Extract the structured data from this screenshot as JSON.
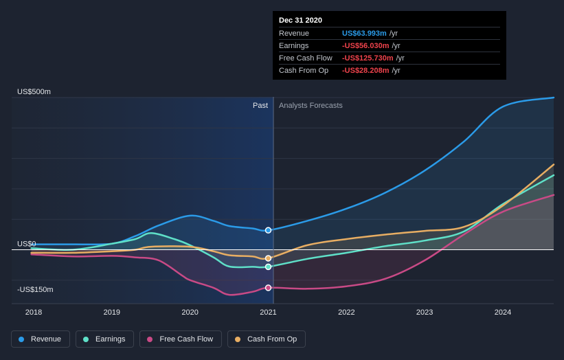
{
  "tooltip": {
    "date": "Dec 31 2020",
    "rows": [
      {
        "label": "Revenue",
        "value": "US$63.993m",
        "unit": "/yr",
        "color": "#2b9be8"
      },
      {
        "label": "Earnings",
        "value": "-US$56.030m",
        "unit": "/yr",
        "color": "#f0434c"
      },
      {
        "label": "Free Cash Flow",
        "value": "-US$125.730m",
        "unit": "/yr",
        "color": "#f0434c"
      },
      {
        "label": "Cash From Op",
        "value": "-US$28.208m",
        "unit": "/yr",
        "color": "#f0434c"
      }
    ]
  },
  "legend": [
    {
      "label": "Revenue",
      "color": "#2b9be8"
    },
    {
      "label": "Earnings",
      "color": "#5fe0c8"
    },
    {
      "label": "Free Cash Flow",
      "color": "#c94a86"
    },
    {
      "label": "Cash From Op",
      "color": "#e8ae63"
    }
  ],
  "chart_data": {
    "type": "line",
    "title": "",
    "xlabel": "",
    "ylabel": "",
    "ylim": [
      -150,
      500
    ],
    "y_tick_labels": [
      {
        "value": 500,
        "label": "US$500m"
      },
      {
        "value": 0,
        "label": "US$0"
      },
      {
        "value": -150,
        "label": "-US$150m"
      }
    ],
    "x_ticks": [
      2018,
      2019,
      2020,
      2021,
      2022,
      2023,
      2024
    ],
    "x_tick_labels": [
      "2018",
      "2019",
      "2020",
      "2021",
      "2022",
      "2023",
      "2024"
    ],
    "xlim": [
      2018,
      2024.65
    ],
    "past_label": "Past",
    "forecast_label": "Analysts Forecasts",
    "present_x": 2021.0,
    "series": [
      {
        "name": "Revenue",
        "color": "#2b9be8",
        "points": [
          [
            2017.97,
            18
          ],
          [
            2018.5,
            18
          ],
          [
            2019.0,
            20
          ],
          [
            2019.3,
            45
          ],
          [
            2019.6,
            80
          ],
          [
            2020.0,
            112
          ],
          [
            2020.3,
            95
          ],
          [
            2020.5,
            78
          ],
          [
            2020.8,
            70
          ],
          [
            2021.0,
            64
          ],
          [
            2021.5,
            95
          ],
          [
            2022.0,
            135
          ],
          [
            2022.5,
            188
          ],
          [
            2023.0,
            260
          ],
          [
            2023.5,
            355
          ],
          [
            2024.0,
            470
          ],
          [
            2024.65,
            500
          ]
        ]
      },
      {
        "name": "Earnings",
        "color": "#5fe0c8",
        "points": [
          [
            2017.97,
            5
          ],
          [
            2018.5,
            0
          ],
          [
            2019.0,
            20
          ],
          [
            2019.3,
            35
          ],
          [
            2019.5,
            55
          ],
          [
            2019.8,
            35
          ],
          [
            2020.0,
            15
          ],
          [
            2020.3,
            -25
          ],
          [
            2020.5,
            -55
          ],
          [
            2020.8,
            -56
          ],
          [
            2021.0,
            -56
          ],
          [
            2021.5,
            -30
          ],
          [
            2022.0,
            -10
          ],
          [
            2022.5,
            12
          ],
          [
            2023.0,
            30
          ],
          [
            2023.5,
            60
          ],
          [
            2024.0,
            150
          ],
          [
            2024.65,
            245
          ]
        ]
      },
      {
        "name": "Free Cash Flow",
        "color": "#c94a86",
        "points": [
          [
            2017.97,
            -15
          ],
          [
            2018.5,
            -22
          ],
          [
            2019.0,
            -20
          ],
          [
            2019.3,
            -25
          ],
          [
            2019.6,
            -35
          ],
          [
            2019.9,
            -85
          ],
          [
            2020.0,
            -100
          ],
          [
            2020.3,
            -125
          ],
          [
            2020.5,
            -148
          ],
          [
            2020.8,
            -138
          ],
          [
            2021.0,
            -125
          ],
          [
            2021.5,
            -128
          ],
          [
            2022.0,
            -120
          ],
          [
            2022.5,
            -95
          ],
          [
            2023.0,
            -35
          ],
          [
            2023.5,
            50
          ],
          [
            2024.0,
            125
          ],
          [
            2024.65,
            180
          ]
        ]
      },
      {
        "name": "Cash From Op",
        "color": "#e8ae63",
        "points": [
          [
            2017.97,
            -10
          ],
          [
            2018.5,
            -10
          ],
          [
            2019.0,
            -5
          ],
          [
            2019.3,
            0
          ],
          [
            2019.5,
            10
          ],
          [
            2020.0,
            10
          ],
          [
            2020.3,
            -5
          ],
          [
            2020.5,
            -18
          ],
          [
            2020.8,
            -22
          ],
          [
            2021.0,
            -28
          ],
          [
            2021.5,
            15
          ],
          [
            2022.0,
            35
          ],
          [
            2022.5,
            50
          ],
          [
            2023.0,
            62
          ],
          [
            2023.5,
            75
          ],
          [
            2024.0,
            145
          ],
          [
            2024.65,
            280
          ]
        ]
      }
    ]
  }
}
